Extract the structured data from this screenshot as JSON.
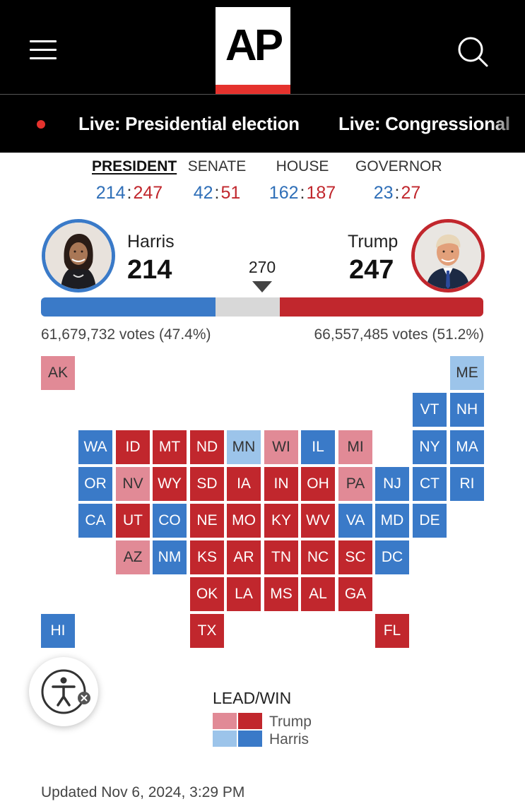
{
  "header": {
    "logo_text": "AP",
    "menu_icon": "hamburger-menu-icon",
    "search_icon": "search-icon"
  },
  "live_links": [
    "Live: Presidential election",
    "Live: Congressional"
  ],
  "race_tabs": [
    {
      "label": "PRESIDENT",
      "dem": "214",
      "rep": "247",
      "active": true
    },
    {
      "label": "SENATE",
      "dem": "42",
      "rep": "51",
      "active": false
    },
    {
      "label": "HOUSE",
      "dem": "162",
      "rep": "187",
      "active": false
    },
    {
      "label": "GOVERNOR",
      "dem": "23",
      "rep": "27",
      "active": false
    }
  ],
  "score_separator": ":",
  "candidates": {
    "dem": {
      "name": "Harris",
      "electoral_votes": "214",
      "popular_votes": "61,679,732 votes (47.4%)"
    },
    "rep": {
      "name": "Trump",
      "electoral_votes": "247",
      "popular_votes": "66,557,485 votes (51.2%)"
    }
  },
  "threshold": "270",
  "colors": {
    "dem_win": "#3a7ac8",
    "dem_lead": "#9cc4ea",
    "rep_win": "#c1272d",
    "rep_lead": "#e18a96",
    "undecided": "#d8d8d8"
  },
  "electoral_bar": {
    "dem": 214,
    "undecided": 77,
    "rep": 247,
    "total": 538
  },
  "states": [
    {
      "abbr": "AK",
      "status": "rep-lead"
    },
    {
      "abbr": "ME",
      "status": "dem-lead"
    },
    {
      "abbr": "VT",
      "status": "dem-win"
    },
    {
      "abbr": "NH",
      "status": "dem-win"
    },
    {
      "abbr": "WA",
      "status": "dem-win"
    },
    {
      "abbr": "ID",
      "status": "rep-win"
    },
    {
      "abbr": "MT",
      "status": "rep-win"
    },
    {
      "abbr": "ND",
      "status": "rep-win"
    },
    {
      "abbr": "MN",
      "status": "dem-lead"
    },
    {
      "abbr": "WI",
      "status": "rep-lead"
    },
    {
      "abbr": "IL",
      "status": "dem-win"
    },
    {
      "abbr": "MI",
      "status": "rep-lead"
    },
    {
      "abbr": "NY",
      "status": "dem-win"
    },
    {
      "abbr": "MA",
      "status": "dem-win"
    },
    {
      "abbr": "OR",
      "status": "dem-win"
    },
    {
      "abbr": "NV",
      "status": "rep-lead"
    },
    {
      "abbr": "WY",
      "status": "rep-win"
    },
    {
      "abbr": "SD",
      "status": "rep-win"
    },
    {
      "abbr": "IA",
      "status": "rep-win"
    },
    {
      "abbr": "IN",
      "status": "rep-win"
    },
    {
      "abbr": "OH",
      "status": "rep-win"
    },
    {
      "abbr": "PA",
      "status": "rep-lead"
    },
    {
      "abbr": "NJ",
      "status": "dem-win"
    },
    {
      "abbr": "CT",
      "status": "dem-win"
    },
    {
      "abbr": "RI",
      "status": "dem-win"
    },
    {
      "abbr": "CA",
      "status": "dem-win"
    },
    {
      "abbr": "UT",
      "status": "rep-win"
    },
    {
      "abbr": "CO",
      "status": "dem-win"
    },
    {
      "abbr": "NE",
      "status": "rep-win"
    },
    {
      "abbr": "MO",
      "status": "rep-win"
    },
    {
      "abbr": "KY",
      "status": "rep-win"
    },
    {
      "abbr": "WV",
      "status": "rep-win"
    },
    {
      "abbr": "VA",
      "status": "dem-win"
    },
    {
      "abbr": "MD",
      "status": "dem-win"
    },
    {
      "abbr": "DE",
      "status": "dem-win"
    },
    {
      "abbr": "AZ",
      "status": "rep-lead"
    },
    {
      "abbr": "NM",
      "status": "dem-win"
    },
    {
      "abbr": "KS",
      "status": "rep-win"
    },
    {
      "abbr": "AR",
      "status": "rep-win"
    },
    {
      "abbr": "TN",
      "status": "rep-win"
    },
    {
      "abbr": "NC",
      "status": "rep-win"
    },
    {
      "abbr": "SC",
      "status": "rep-win"
    },
    {
      "abbr": "DC",
      "status": "dem-win"
    },
    {
      "abbr": "OK",
      "status": "rep-win"
    },
    {
      "abbr": "LA",
      "status": "rep-win"
    },
    {
      "abbr": "MS",
      "status": "rep-win"
    },
    {
      "abbr": "AL",
      "status": "rep-win"
    },
    {
      "abbr": "GA",
      "status": "rep-win"
    },
    {
      "abbr": "HI",
      "status": "dem-win"
    },
    {
      "abbr": "TX",
      "status": "rep-win"
    },
    {
      "abbr": "FL",
      "status": "rep-win"
    }
  ],
  "legend": {
    "title": "LEAD/WIN",
    "rep_label": "Trump",
    "dem_label": "Harris"
  },
  "accessibility_icon": "accessibility-icon",
  "updated": "Updated Nov 6, 2024, 3:29 PM"
}
